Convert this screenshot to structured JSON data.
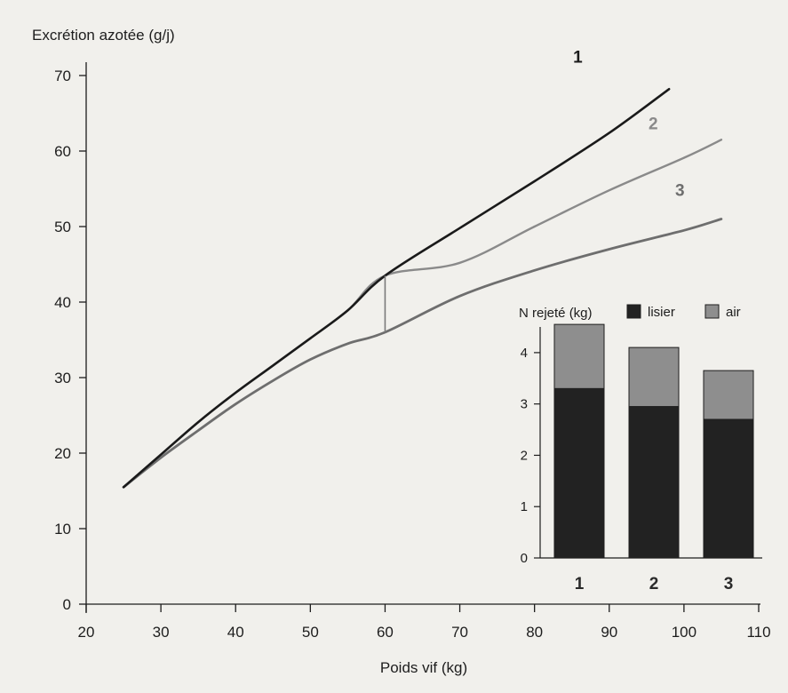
{
  "chart_data": [
    {
      "type": "line",
      "ylabel": "Excrétion azotée (g/j)",
      "xlabel": "Poids vif (kg)",
      "xlim": [
        20,
        110
      ],
      "ylim": [
        0,
        70
      ],
      "xticks": [
        20,
        30,
        40,
        50,
        60,
        70,
        80,
        90,
        100,
        110
      ],
      "yticks": [
        0,
        10,
        20,
        30,
        40,
        50,
        60,
        70
      ],
      "grid": false,
      "series": [
        {
          "name": "1",
          "color": "#1a1a1a",
          "x": [
            25,
            30,
            35,
            40,
            45,
            50,
            55,
            60,
            70,
            80,
            90,
            98
          ],
          "y": [
            15.5,
            19.8,
            24.1,
            28.0,
            31.6,
            35.2,
            38.9,
            43.5,
            49.8,
            56.0,
            62.4,
            68.2
          ]
        },
        {
          "name": "2",
          "color": "#8a8a8a",
          "x": [
            25,
            30,
            35,
            40,
            45,
            50,
            55,
            60,
            70,
            80,
            90,
            100,
            105
          ],
          "y": [
            15.5,
            19.8,
            24.1,
            28.0,
            31.6,
            35.2,
            38.9,
            43.5,
            45.2,
            50.0,
            54.8,
            59.1,
            61.5
          ]
        },
        {
          "name": "3",
          "color": "#6e6e6e",
          "x": [
            25,
            30,
            35,
            40,
            45,
            50,
            55,
            60,
            70,
            80,
            90,
            100,
            105
          ],
          "y": [
            15.5,
            19.4,
            23.0,
            26.5,
            29.6,
            32.4,
            34.5,
            36.0,
            40.8,
            44.2,
            47.0,
            49.5,
            51.0
          ]
        }
      ],
      "annotations": [
        {
          "type": "vertical-segment",
          "x": 60,
          "y_from": 36.0,
          "y_to": 43.5
        }
      ]
    },
    {
      "type": "bar",
      "stacked": true,
      "ylabel": "N rejeté (kg)",
      "categories": [
        "1",
        "2",
        "3"
      ],
      "ylim": [
        0,
        4.5
      ],
      "yticks": [
        0,
        1,
        2,
        3,
        4
      ],
      "legend_placement": "top",
      "series": [
        {
          "name": "lisier",
          "color": "#222222",
          "values": [
            3.3,
            2.95,
            2.7
          ]
        },
        {
          "name": "air",
          "color": "#8e8e8e",
          "values": [
            1.25,
            1.15,
            0.95
          ]
        }
      ]
    }
  ]
}
